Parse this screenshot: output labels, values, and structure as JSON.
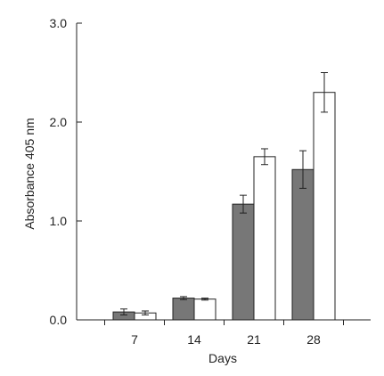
{
  "chart_data": {
    "type": "bar",
    "xlabel": "Days",
    "ylabel": "Absorbance 405 nm",
    "categories": [
      "7",
      "14",
      "21",
      "28"
    ],
    "ylim": [
      0,
      3.0
    ],
    "yticks": [
      "0.0",
      "1.0",
      "2.0",
      "3.0"
    ],
    "y_tick_values": [
      0,
      1,
      2,
      3
    ],
    "grid": false,
    "legend": "none",
    "series": [
      {
        "color": "#777777",
        "values": [
          0.08,
          0.22,
          1.17,
          1.52
        ],
        "errors": [
          0.03,
          0.015,
          0.09,
          0.19
        ]
      },
      {
        "color": "#ffffff",
        "values": [
          0.07,
          0.21,
          1.65,
          2.3
        ],
        "errors": [
          0.02,
          0.01,
          0.08,
          0.2
        ]
      }
    ]
  }
}
